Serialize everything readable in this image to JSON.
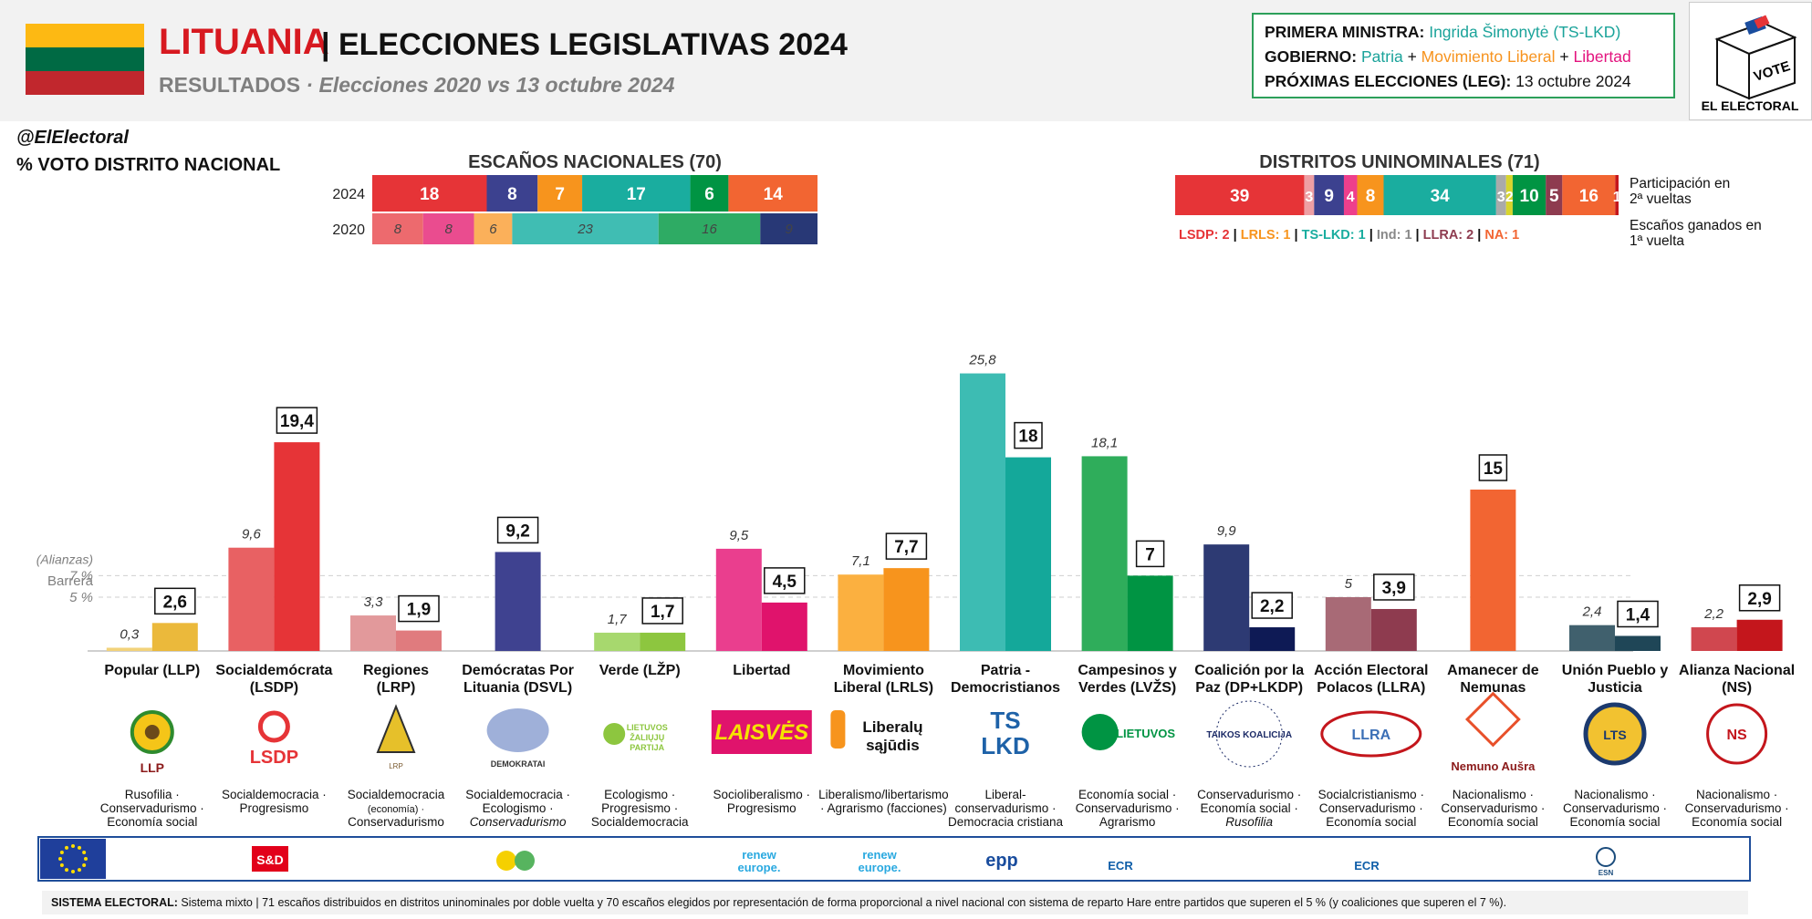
{
  "header": {
    "country": "LITUANIA",
    "title": "| ELECCIONES LEGISLATIVAS 2024",
    "subtitle_main": "RESULTADOS",
    "subtitle_rest": " · Elecciones 2020 vs 13 octubre 2024",
    "flag_colors": [
      "#fdb913",
      "#006a44",
      "#c1272d"
    ]
  },
  "infobox": {
    "pm_label": "PRIMERA MINISTRA:",
    "pm_value": "Ingrida Šimonytė (TS-LKD)",
    "gov_label": "GOBIERNO:",
    "gov_parties": [
      "Patria",
      "Movimiento Liberal",
      "Libertad"
    ],
    "gov_colors": [
      "#26a69a",
      "#f7931e",
      "#e3137e"
    ],
    "next_label": "PRÓXIMAS ELECCIONES (LEG):",
    "next_value": "13 octubre 2024"
  },
  "logo": {
    "vote": "VOTE",
    "name": "EL ELECTORAL"
  },
  "handle": "@ElElectoral",
  "voto_label": "% VOTO DISTRITO NACIONAL",
  "seats_nat": {
    "title": "ESCAÑOS NACIONALES (70)",
    "row_labels": [
      "2024",
      "2020"
    ],
    "y2024": [
      {
        "v": 18,
        "c": "#e63437"
      },
      {
        "v": 8,
        "c": "#3c418f"
      },
      {
        "v": 7,
        "c": "#f7941d"
      },
      {
        "v": 17,
        "c": "#1aad9f"
      },
      {
        "v": 6,
        "c": "#009443"
      },
      {
        "v": 14,
        "c": "#f26532"
      }
    ],
    "y2020": [
      {
        "v": 8,
        "c": "#ed6a6e"
      },
      {
        "v": 8,
        "c": "#ea4c8f"
      },
      {
        "v": 6,
        "c": "#fbb05a"
      },
      {
        "v": 23,
        "c": "#40bdb3"
      },
      {
        "v": 16,
        "c": "#2eab64"
      },
      {
        "v": 9,
        "c": "#283876"
      }
    ]
  },
  "seats_uni": {
    "title": "DISTRITOS UNINOMINALES (71)",
    "segments": [
      {
        "v": 39,
        "c": "#e63437",
        "t": "39"
      },
      {
        "v": 3,
        "c": "#ee9fa4",
        "t": "3"
      },
      {
        "v": 9,
        "c": "#3c418f",
        "t": "9"
      },
      {
        "v": 4,
        "c": "#ee3f8c",
        "t": "4"
      },
      {
        "v": 8,
        "c": "#f7941d",
        "t": "8"
      },
      {
        "v": 34,
        "c": "#1aad9f",
        "t": "34"
      },
      {
        "v": 3,
        "c": "#aaaaaa",
        "t": "3"
      },
      {
        "v": 2,
        "c": "#d7d42d",
        "t": "2"
      },
      {
        "v": 10,
        "c": "#009443",
        "t": "10"
      },
      {
        "v": 5,
        "c": "#8e3b4f",
        "t": "5"
      },
      {
        "v": 16,
        "c": "#f26532",
        "t": "16"
      },
      {
        "v": 1,
        "c": "#c4161c",
        "t": "1"
      }
    ],
    "note1": "Participación en 2ª vueltas",
    "note2": "Escaños ganados en 1ª vuelta",
    "first_round": [
      {
        "t": "LSDP: 2",
        "c": "#e63437"
      },
      {
        "t": "LRLS: 1",
        "c": "#f7941d"
      },
      {
        "t": "TS-LKD: 1",
        "c": "#1aad9f"
      },
      {
        "t": "Ind: 1",
        "c": "#888888"
      },
      {
        "t": "LLRA: 2",
        "c": "#8e3b4f"
      },
      {
        "t": "NA: 1",
        "c": "#f26532"
      }
    ]
  },
  "chart_data": {
    "type": "bar",
    "ylabel": "",
    "threshold_labels": [
      "(Alianzas)",
      "7 %",
      "Barrera",
      "5 %"
    ],
    "thresholds": [
      7,
      5
    ],
    "series": [
      {
        "name": "2020",
        "values": [
          0.3,
          9.6,
          3.3,
          null,
          1.7,
          9.5,
          7.1,
          25.8,
          18.1,
          9.9,
          5,
          null,
          2.4,
          2.2
        ],
        "labels": [
          "0,3",
          "9,6",
          "3,3",
          "",
          "1,7",
          "9,5",
          "7,1",
          "25,8",
          "18,1",
          "9,9",
          "5",
          "",
          "2,4",
          "2,2"
        ]
      },
      {
        "name": "2024",
        "values": [
          2.6,
          19.4,
          1.9,
          9.2,
          1.7,
          4.5,
          7.7,
          18,
          7,
          2.2,
          3.9,
          15,
          1.4,
          2.9
        ],
        "labels": [
          "2,6",
          "19,4",
          "1,9",
          "9,2",
          "1,7",
          "4,5",
          "7,7",
          "18",
          "7",
          "2,2",
          "3,9",
          "15",
          "1,4",
          "2,9"
        ]
      }
    ],
    "parties": [
      {
        "name": [
          "Popular (LLP)"
        ],
        "c20": "#f2d27a",
        "c24": "#ebb93b",
        "logo": "LLP",
        "lc": "#8b1a1a",
        "ideo": [
          "Rusofilia ·",
          "Conservadurismo ·",
          "Economía social"
        ]
      },
      {
        "name": [
          "Socialdemócrata",
          "(LSDP)"
        ],
        "c20": "#e86163",
        "c24": "#e63437",
        "logo": "LSDP",
        "lc": "#e63437",
        "ideo": [
          "Socialdemocracia ·",
          "Progresismo"
        ]
      },
      {
        "name": [
          "Regiones",
          "(LRP)"
        ],
        "c20": "#e2999b",
        "c24": "#e07b7e",
        "logo": "LRP",
        "lc": "#7a5a30",
        "ideo": [
          "Socialdemocracia",
          "(economía) ·",
          "Conservadurismo"
        ]
      },
      {
        "name": [
          "Demócratas Por",
          "Lituania (DSVL)"
        ],
        "c20": "#3f4290",
        "c24": "#3f4290",
        "logo": "DEMOKRATAI",
        "lc": "#5b6aa5",
        "ideo": [
          "Socialdemocracia ·",
          "Ecologismo ·",
          "Conservadurismo"
        ]
      },
      {
        "name": [
          "Verde (LŽP)"
        ],
        "c20": "#a7d86e",
        "c24": "#8dc63f",
        "logo": "LIETUVOS ŽALIŲJŲ PARTIJA",
        "lc": "#8dc63f",
        "ideo": [
          "Ecologismo ·",
          "Progresismo ·",
          "Socialdemocracia"
        ]
      },
      {
        "name": [
          "Libertad"
        ],
        "c20": "#ea3e8e",
        "c24": "#e0136c",
        "logo": "LAISVĖS",
        "lc": "#e0136c",
        "ideo": [
          "Socioliberalismo ·",
          "Progresismo"
        ]
      },
      {
        "name": [
          "Movimiento",
          "Liberal (LRLS)"
        ],
        "c20": "#fbb040",
        "c24": "#f7941d",
        "logo": "Liberalų sąjūdis",
        "lc": "#f7941d",
        "ideo": [
          "Liberalismo/libertarismo",
          "· Agrarismo (facciones)"
        ]
      },
      {
        "name": [
          "Patria -",
          "Democristianos"
        ],
        "c20": "#3dbcb3",
        "c24": "#14a89a",
        "logo": "TS LKD",
        "lc": "#1e62a8",
        "ideo": [
          "Liberal-",
          "conservadurismo ·",
          "Democracia cristiana"
        ]
      },
      {
        "name": [
          "Campesinos y",
          "Verdes (LVŽS)"
        ],
        "c20": "#2fad5b",
        "c24": "#009443",
        "logo": "LIETUVOS",
        "lc": "#009443",
        "ideo": [
          "Economía social ·",
          "Conservadurismo ·",
          "Agrarismo"
        ]
      },
      {
        "name": [
          "Coalición por la",
          "Paz (DP+LKDP)"
        ],
        "c20": "#2d3a73",
        "c24": "#0e1a55",
        "logo": "TAIKOS KOALICIJA",
        "lc": "#1b2a66",
        "ideo": [
          "Conservadurismo ·",
          "Economía social ·",
          "Rusofilia"
        ]
      },
      {
        "name": [
          "Acción Electoral",
          "Polacos (LLRA)"
        ],
        "c20": "#a86a76",
        "c24": "#8e3b4f",
        "logo": "LLRA",
        "lc": "#3b6fb6",
        "ideo": [
          "Socialcristianismo ·",
          "Conservadurismo ·",
          "Economía social"
        ]
      },
      {
        "name": [
          "Amanecer de",
          "Nemunas"
        ],
        "c20": "#f26532",
        "c24": "#f26532",
        "logo": "Nemuno Aušra",
        "lc": "#e8502a",
        "ideo": [
          "Nacionalismo ·",
          "Conservadurismo ·",
          "Economía social"
        ]
      },
      {
        "name": [
          "Unión Pueblo y",
          "Justicia"
        ],
        "c20": "#40606d",
        "c24": "#1f4657",
        "logo": "LTS",
        "lc": "#1c3a6e",
        "ideo": [
          "Nacionalismo ·",
          "Conservadurismo ·",
          "Economía social"
        ]
      },
      {
        "name": [
          "Alianza Nacional",
          "(NS)"
        ],
        "c20": "#d0474f",
        "c24": "#c4161c",
        "logo": "NS",
        "lc": "#c4161c",
        "ideo": [
          "Nacionalismo ·",
          "Conservadurismo ·",
          "Economía social"
        ]
      }
    ]
  },
  "eu_groups": [
    {
      "t": "S&D",
      "c": "#e2001a"
    },
    {
      "t": "G/EFA",
      "c": "#57b45f"
    },
    {
      "t": "renew europe.",
      "c": "#2aa9e0"
    },
    {
      "t": "renew europe.",
      "c": "#2aa9e0"
    },
    {
      "t": "epp",
      "c": "#1a4d9e"
    },
    {
      "t": "ECR",
      "c": "#0f5ea8"
    },
    {
      "t": "ECR",
      "c": "#0f5ea8"
    },
    {
      "t": "ESN",
      "c": "#1b4c7c"
    }
  ],
  "system": {
    "label": "SISTEMA ELECTORAL:",
    "text": " Sistema mixto | 71 escaños distribuidos en distritos uninominales por doble vuelta y 70 escaños elegidos por representación de forma proporcional a nivel nacional con sistema de reparto Hare entre partidos que superen el 5 % (y coaliciones que superen el 7 %)."
  }
}
